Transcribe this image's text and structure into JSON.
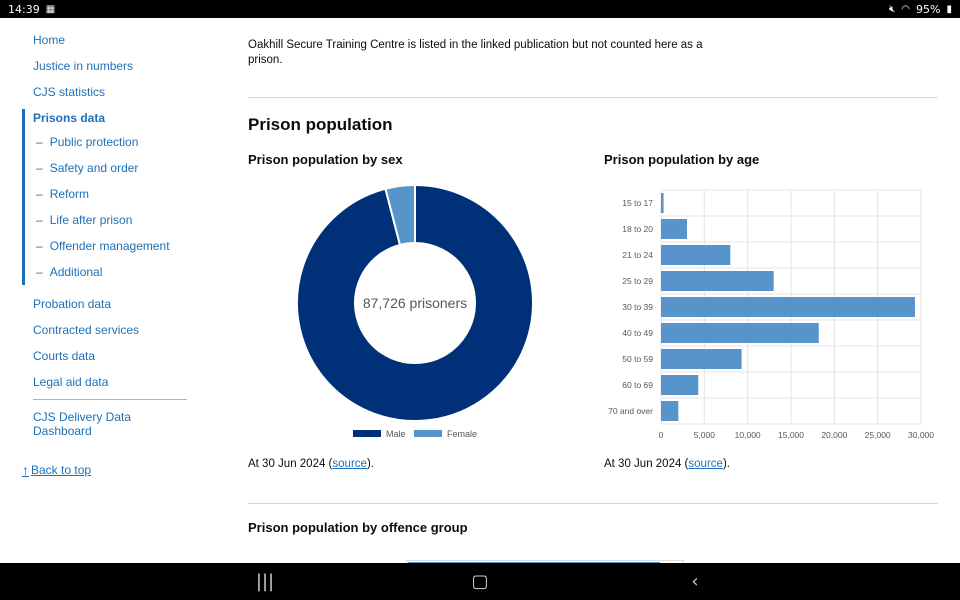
{
  "status_bar": {
    "time": "14:39",
    "battery": "95%"
  },
  "sidebar": {
    "links": [
      {
        "label": "Home"
      },
      {
        "label": "Justice in numbers"
      },
      {
        "label": "CJS statistics"
      }
    ],
    "active_group": {
      "title": "Prisons data",
      "items": [
        {
          "label": "Public protection"
        },
        {
          "label": "Safety and order"
        },
        {
          "label": "Reform"
        },
        {
          "label": "Life after prison"
        },
        {
          "label": "Offender management"
        },
        {
          "label": "Additional"
        }
      ]
    },
    "links_after": [
      {
        "label": "Probation data"
      },
      {
        "label": "Contracted services"
      },
      {
        "label": "Courts data"
      },
      {
        "label": "Legal aid data"
      }
    ],
    "dashboard_link": "CJS Delivery Data Dashboard",
    "back_to_top": "Back to top"
  },
  "main": {
    "paragraph": "Oakhill Secure Training Centre is listed in the linked publication but not counted here as a prison.",
    "section_title": "Prison population",
    "sex_chart_title": "Prison population by sex",
    "age_chart_title": "Prison population by age",
    "caption_prefix": "At 30 Jun 2024 (",
    "caption_link": "source",
    "caption_suffix": ").",
    "offence_title": "Prison population by offence group"
  },
  "chart_data": [
    {
      "type": "pie",
      "title": "Prison population by sex",
      "center_label": "87,726 prisoners",
      "categories": [
        "Male",
        "Female"
      ],
      "values": [
        84188,
        3538
      ],
      "colors": [
        "#003078",
        "#5694ca"
      ],
      "legend_position": "bottom"
    },
    {
      "type": "bar",
      "orientation": "horizontal",
      "title": "Prison population by age",
      "categories": [
        "15 to 17",
        "18 to 20",
        "21 to 24",
        "25 to 29",
        "30 to 39",
        "40 to 49",
        "50 to 59",
        "60 to 69",
        "70 and over"
      ],
      "values": [
        300,
        3000,
        8000,
        13000,
        29300,
        18200,
        9300,
        4300,
        2000
      ],
      "xlim": [
        0,
        30000
      ],
      "xticks": [
        "0",
        "5,000",
        "10,000",
        "15,000",
        "20,000",
        "25,000",
        "30,000"
      ],
      "color": "#5694ca",
      "grid": true
    }
  ]
}
